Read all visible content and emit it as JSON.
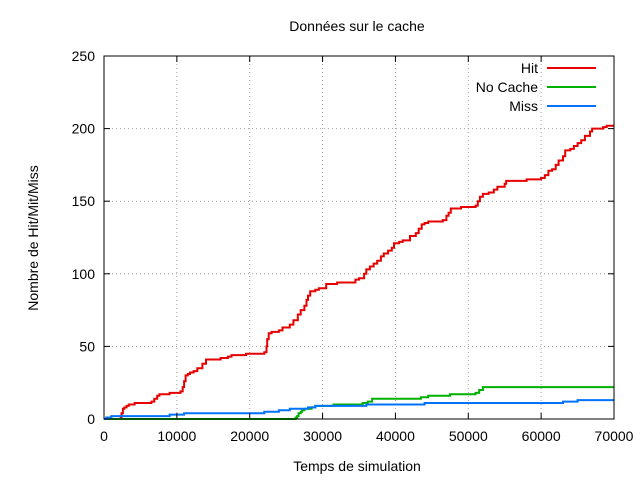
{
  "chart_data": {
    "type": "line",
    "title": "Données sur le cache",
    "xlabel": "Temps de simulation",
    "ylabel": "Nombre de Hit/Mit/Miss",
    "xlim": [
      0,
      70000
    ],
    "ylim": [
      0,
      250
    ],
    "xticks": [
      0,
      10000,
      20000,
      30000,
      40000,
      50000,
      60000,
      70000
    ],
    "yticks": [
      0,
      50,
      100,
      150,
      200,
      250
    ],
    "grid": true,
    "legend_position": "top-right",
    "series": [
      {
        "name": "Hit",
        "color": "#e60000",
        "step": true,
        "points": [
          [
            0,
            0
          ],
          [
            2300,
            1
          ],
          [
            2400,
            4
          ],
          [
            2600,
            7
          ],
          [
            2800,
            8
          ],
          [
            3100,
            9
          ],
          [
            3400,
            10
          ],
          [
            4200,
            11
          ],
          [
            6500,
            12
          ],
          [
            6900,
            14
          ],
          [
            7300,
            16
          ],
          [
            7600,
            17
          ],
          [
            9000,
            18
          ],
          [
            10500,
            19
          ],
          [
            10800,
            22
          ],
          [
            11000,
            26
          ],
          [
            11200,
            30
          ],
          [
            11500,
            31
          ],
          [
            11800,
            32
          ],
          [
            12300,
            33
          ],
          [
            12800,
            35
          ],
          [
            13500,
            38
          ],
          [
            14000,
            41
          ],
          [
            16000,
            42
          ],
          [
            17000,
            43
          ],
          [
            17500,
            44
          ],
          [
            19500,
            45
          ],
          [
            22000,
            46
          ],
          [
            22300,
            50
          ],
          [
            22400,
            55
          ],
          [
            22600,
            59
          ],
          [
            23000,
            60
          ],
          [
            24000,
            61
          ],
          [
            24500,
            63
          ],
          [
            25500,
            65
          ],
          [
            26000,
            68
          ],
          [
            26600,
            72
          ],
          [
            27000,
            75
          ],
          [
            27500,
            78
          ],
          [
            27800,
            82
          ],
          [
            28000,
            85
          ],
          [
            28300,
            88
          ],
          [
            29000,
            89
          ],
          [
            29500,
            90
          ],
          [
            30500,
            93
          ],
          [
            32000,
            94
          ],
          [
            34500,
            96
          ],
          [
            35000,
            97
          ],
          [
            35700,
            100
          ],
          [
            36000,
            103
          ],
          [
            36500,
            105
          ],
          [
            37000,
            107
          ],
          [
            37500,
            109
          ],
          [
            38000,
            112
          ],
          [
            38400,
            114
          ],
          [
            39000,
            116
          ],
          [
            39500,
            118
          ],
          [
            39800,
            121
          ],
          [
            40500,
            122
          ],
          [
            41000,
            123
          ],
          [
            42000,
            126
          ],
          [
            42800,
            128
          ],
          [
            43200,
            131
          ],
          [
            43600,
            134
          ],
          [
            44000,
            135
          ],
          [
            44500,
            136
          ],
          [
            46500,
            137
          ],
          [
            47000,
            140
          ],
          [
            47300,
            142
          ],
          [
            47600,
            145
          ],
          [
            49000,
            146
          ],
          [
            51000,
            147
          ],
          [
            51300,
            150
          ],
          [
            51600,
            153
          ],
          [
            52000,
            155
          ],
          [
            52800,
            156
          ],
          [
            53500,
            158
          ],
          [
            54000,
            160
          ],
          [
            55000,
            162
          ],
          [
            55200,
            164
          ],
          [
            58000,
            165
          ],
          [
            60000,
            166
          ],
          [
            60500,
            168
          ],
          [
            61000,
            171
          ],
          [
            61500,
            172
          ],
          [
            62000,
            175
          ],
          [
            62400,
            178
          ],
          [
            63000,
            181
          ],
          [
            63300,
            185
          ],
          [
            64000,
            186
          ],
          [
            64500,
            188
          ],
          [
            65000,
            190
          ],
          [
            65500,
            192
          ],
          [
            66000,
            195
          ],
          [
            66700,
            198
          ],
          [
            67000,
            200
          ],
          [
            68500,
            201
          ],
          [
            69000,
            202
          ],
          [
            70000,
            202
          ]
        ]
      },
      {
        "name": "No Cache",
        "color": "#00b000",
        "step": true,
        "points": [
          [
            0,
            0
          ],
          [
            26000,
            0
          ],
          [
            26300,
            1
          ],
          [
            26500,
            2
          ],
          [
            26700,
            4
          ],
          [
            27000,
            5
          ],
          [
            27200,
            6
          ],
          [
            27500,
            7
          ],
          [
            28500,
            8
          ],
          [
            29000,
            9
          ],
          [
            31500,
            10
          ],
          [
            35500,
            11
          ],
          [
            36200,
            12
          ],
          [
            36800,
            14
          ],
          [
            43500,
            15
          ],
          [
            44500,
            16
          ],
          [
            47500,
            17
          ],
          [
            51000,
            18
          ],
          [
            51500,
            20
          ],
          [
            52000,
            22
          ],
          [
            70000,
            22
          ]
        ]
      },
      {
        "name": "Miss",
        "color": "#0072ff",
        "step": true,
        "points": [
          [
            0,
            0
          ],
          [
            300,
            1
          ],
          [
            1000,
            2
          ],
          [
            9000,
            3
          ],
          [
            11000,
            4
          ],
          [
            22000,
            5
          ],
          [
            24000,
            6
          ],
          [
            25500,
            7
          ],
          [
            28000,
            8
          ],
          [
            29000,
            9
          ],
          [
            36000,
            10
          ],
          [
            44000,
            11
          ],
          [
            63000,
            12
          ],
          [
            65000,
            13
          ],
          [
            70000,
            13
          ]
        ]
      }
    ]
  }
}
